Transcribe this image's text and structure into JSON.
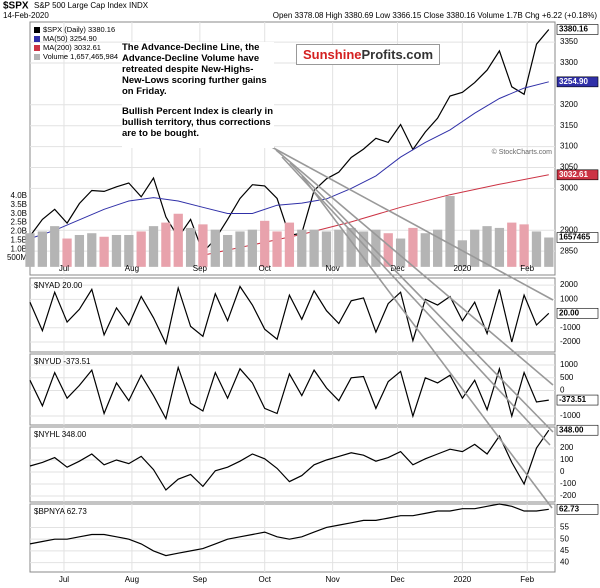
{
  "header": {
    "symbol": "$SPX",
    "name": "S&P 500 Large Cap Index INDX",
    "date": "14-Feb-2020",
    "quote": "Open 3378.08 High 3380.69 Low 3366.15 Close 3380.16 Volume 1.7B Chg +6.22 (+0.18%)"
  },
  "annotation": [
    "The Advance-Decline Line, the Advance-Decline Volume have retreated despite New-Highs-New-Lows scoring further gains on Friday.",
    "Bullish Percent Index is clearly in bullish territory, thus corrections are to be bought."
  ],
  "logo": {
    "part1": "Sunshine",
    "part2": "Profits.com"
  },
  "chart_data": [
    {
      "type": "line",
      "watermark": "© StockCharts.com",
      "xlim": [
        0,
        170
      ],
      "xticks": [
        {
          "value": 11,
          "label": "Jul"
        },
        {
          "value": 33,
          "label": "Aug"
        },
        {
          "value": 55,
          "label": "Sep"
        },
        {
          "value": 76,
          "label": "Oct"
        },
        {
          "value": 98,
          "label": "Nov"
        },
        {
          "value": 119,
          "label": "Dec"
        },
        {
          "value": 140,
          "label": "2020"
        },
        {
          "value": 161,
          "label": "Feb"
        }
      ],
      "ylim": [
        2793,
        3398
      ],
      "yticks": [
        2850,
        2900,
        3000,
        3050,
        3100,
        3150,
        3200,
        3300,
        3350
      ],
      "y2lim": [
        -460000000,
        13830000000
      ],
      "y2ticks": [
        {
          "value": 4000000000,
          "label": "4.0B"
        },
        {
          "value": 3500000000,
          "label": "3.5B"
        },
        {
          "value": 3000000000,
          "label": "3.0B"
        },
        {
          "value": 2500000000,
          "label": "2.5B"
        },
        {
          "value": 2000000000,
          "label": "2.0B"
        },
        {
          "value": 1500000000,
          "label": "1.5B"
        },
        {
          "value": 1000000000,
          "label": "1.0B"
        },
        {
          "value": 500000000,
          "label": "500M"
        }
      ],
      "series": [
        {
          "name": "$SPX (Daily) 3380.16",
          "color": "#000000",
          "last_label": "3380.16",
          "x": [
            0,
            4,
            8,
            12,
            16,
            20,
            24,
            28,
            32,
            36,
            40,
            44,
            48,
            52,
            56,
            60,
            64,
            68,
            72,
            76,
            80,
            84,
            88,
            92,
            96,
            100,
            104,
            108,
            112,
            116,
            120,
            124,
            128,
            132,
            136,
            140,
            144,
            148,
            152,
            156,
            160,
            164,
            168
          ],
          "values": [
            2886,
            2926,
            2950,
            2917,
            2964,
            2995,
            2993,
            3004,
            3013,
            2980,
            3025,
            2932,
            2883,
            2926,
            2847,
            2879,
            2926,
            2976,
            3009,
            3006,
            2976,
            2888,
            2893,
            2995,
            3023,
            3039,
            3074,
            3094,
            3120,
            3110,
            3153,
            3093,
            3135,
            3168,
            3221,
            3230,
            3253,
            3283,
            3329,
            3243,
            3225,
            3345,
            3380.16
          ]
        },
        {
          "name": "MA(50) 3254.90",
          "color": "#3030a8",
          "last_label": "3254.90",
          "x": [
            0,
            8,
            16,
            24,
            32,
            40,
            48,
            56,
            64,
            72,
            80,
            88,
            96,
            104,
            112,
            120,
            128,
            136,
            144,
            152,
            160,
            168
          ],
          "values": [
            2880,
            2900,
            2925,
            2950,
            2970,
            2978,
            2970,
            2955,
            2940,
            2940,
            2960,
            2965,
            2975,
            3000,
            3030,
            3075,
            3110,
            3140,
            3180,
            3215,
            3240,
            3254.9
          ]
        },
        {
          "name": "MA(200) 3032.61",
          "color": "#cc3344",
          "last_label": "3032.61",
          "x": [
            56,
            72,
            88,
            104,
            120,
            136,
            152,
            168
          ],
          "values": [
            2840,
            2865,
            2890,
            2920,
            2955,
            2985,
            3010,
            3032.61
          ]
        },
        {
          "name": "Volume 1,657,465,984",
          "type": "bar",
          "axis": "y2",
          "up_color": "#b4b4b4",
          "down_color": "#e8a2ac",
          "last_label": "1657465",
          "x": [
            0,
            4,
            8,
            12,
            16,
            20,
            24,
            28,
            32,
            36,
            40,
            44,
            48,
            52,
            56,
            60,
            64,
            68,
            72,
            76,
            80,
            84,
            88,
            92,
            96,
            100,
            104,
            108,
            112,
            116,
            120,
            124,
            128,
            132,
            136,
            140,
            144,
            148,
            152,
            156,
            160,
            164,
            168
          ],
          "values": [
            1900000000,
            2000000000,
            2300000000,
            1600000000,
            1800000000,
            1900000000,
            1700000000,
            1800000000,
            1800000000,
            2000000000,
            2300000000,
            2500000000,
            3000000000,
            2200000000,
            2400000000,
            2100000000,
            1800000000,
            2000000000,
            2100000000,
            2600000000,
            2000000000,
            2500000000,
            2100000000,
            2100000000,
            2000000000,
            2100000000,
            2200000000,
            2000000000,
            2100000000,
            1900000000,
            1600000000,
            2200000000,
            1900000000,
            2100000000,
            4000000000,
            1500000000,
            2100000000,
            2300000000,
            2200000000,
            2500000000,
            2400000000,
            2000000000,
            1657465984
          ]
        }
      ]
    },
    {
      "type": "line",
      "title": "$NYAD 20.00",
      "ylim": [
        -2700,
        2500
      ],
      "yticks": [
        2000,
        1000,
        -1000,
        -2000
      ],
      "series": [
        {
          "color": "#000000",
          "last_label": "20.00",
          "x": [
            0,
            4,
            8,
            12,
            16,
            20,
            24,
            28,
            32,
            36,
            40,
            44,
            48,
            52,
            56,
            60,
            64,
            68,
            72,
            76,
            80,
            84,
            88,
            92,
            96,
            100,
            104,
            108,
            112,
            116,
            120,
            124,
            128,
            132,
            136,
            140,
            144,
            148,
            152,
            156,
            160,
            164,
            168
          ],
          "values": [
            800,
            -1200,
            1500,
            -600,
            300,
            1700,
            -1500,
            400,
            -800,
            1200,
            -300,
            -2100,
            1800,
            -900,
            -1600,
            1400,
            -500,
            1900,
            600,
            -1100,
            -1800,
            1300,
            -400,
            1600,
            200,
            -700,
            900,
            1100,
            -1300,
            700,
            1500,
            -1900,
            1000,
            600,
            1200,
            -500,
            800,
            -1400,
            1700,
            -2000,
            1300,
            -800,
            20
          ]
        }
      ]
    },
    {
      "type": "line",
      "title": "$NYUD -373.51",
      "ylim": [
        -1350,
        1430
      ],
      "yticks": [
        1000,
        500,
        0,
        -1000
      ],
      "series": [
        {
          "color": "#000000",
          "last_label": "-373.51",
          "x": [
            0,
            4,
            8,
            12,
            16,
            20,
            24,
            28,
            32,
            36,
            40,
            44,
            48,
            52,
            56,
            60,
            64,
            68,
            72,
            76,
            80,
            84,
            88,
            92,
            96,
            100,
            104,
            108,
            112,
            116,
            120,
            124,
            128,
            132,
            136,
            140,
            144,
            148,
            152,
            156,
            160,
            164,
            168
          ],
          "values": [
            400,
            -600,
            700,
            -300,
            200,
            800,
            -900,
            300,
            -400,
            600,
            -200,
            -1100,
            900,
            -500,
            -800,
            700,
            -300,
            850,
            300,
            -700,
            -900,
            650,
            -200,
            800,
            100,
            -400,
            500,
            550,
            -700,
            350,
            750,
            -1000,
            500,
            300,
            600,
            -300,
            400,
            -750,
            850,
            -1000,
            700,
            -450,
            -373.51
          ]
        }
      ]
    },
    {
      "type": "line",
      "title": "$NYHL 348.00",
      "ylim": [
        -250,
        375
      ],
      "yticks": [
        200,
        100,
        0,
        -100,
        -200
      ],
      "series": [
        {
          "color": "#000000",
          "last_label": "348.00",
          "x": [
            0,
            4,
            8,
            12,
            16,
            20,
            24,
            28,
            32,
            36,
            40,
            44,
            48,
            52,
            56,
            60,
            64,
            68,
            72,
            76,
            80,
            84,
            88,
            92,
            96,
            100,
            104,
            108,
            112,
            116,
            120,
            124,
            128,
            132,
            136,
            140,
            144,
            148,
            152,
            156,
            160,
            164,
            168
          ],
          "values": [
            50,
            80,
            120,
            40,
            90,
            150,
            60,
            100,
            70,
            130,
            20,
            -150,
            -60,
            -20,
            -120,
            10,
            40,
            90,
            150,
            110,
            30,
            -80,
            -30,
            60,
            100,
            130,
            160,
            140,
            90,
            120,
            170,
            60,
            110,
            150,
            190,
            170,
            230,
            150,
            300,
            80,
            -100,
            200,
            348
          ]
        }
      ]
    },
    {
      "type": "line",
      "title": "$BPNYA 62.73",
      "ylim": [
        36,
        65
      ],
      "yticks": [
        55,
        50,
        45,
        40
      ],
      "series": [
        {
          "color": "#000000",
          "last_label": "62.73",
          "x": [
            0,
            4,
            8,
            12,
            16,
            20,
            24,
            28,
            32,
            36,
            40,
            44,
            48,
            52,
            56,
            60,
            64,
            68,
            72,
            76,
            80,
            84,
            88,
            92,
            96,
            100,
            104,
            108,
            112,
            116,
            120,
            124,
            128,
            132,
            136,
            140,
            144,
            148,
            152,
            156,
            160,
            164,
            168
          ],
          "values": [
            48,
            49,
            50,
            50,
            51,
            52,
            52,
            51,
            50,
            48,
            45,
            43,
            44,
            45,
            46,
            48,
            50,
            51,
            52,
            53,
            51,
            50,
            51,
            53,
            55,
            56,
            57,
            58,
            58,
            59,
            60,
            60,
            61,
            62,
            62,
            63,
            63,
            64,
            65,
            64,
            62,
            62,
            62.73
          ]
        }
      ]
    }
  ]
}
